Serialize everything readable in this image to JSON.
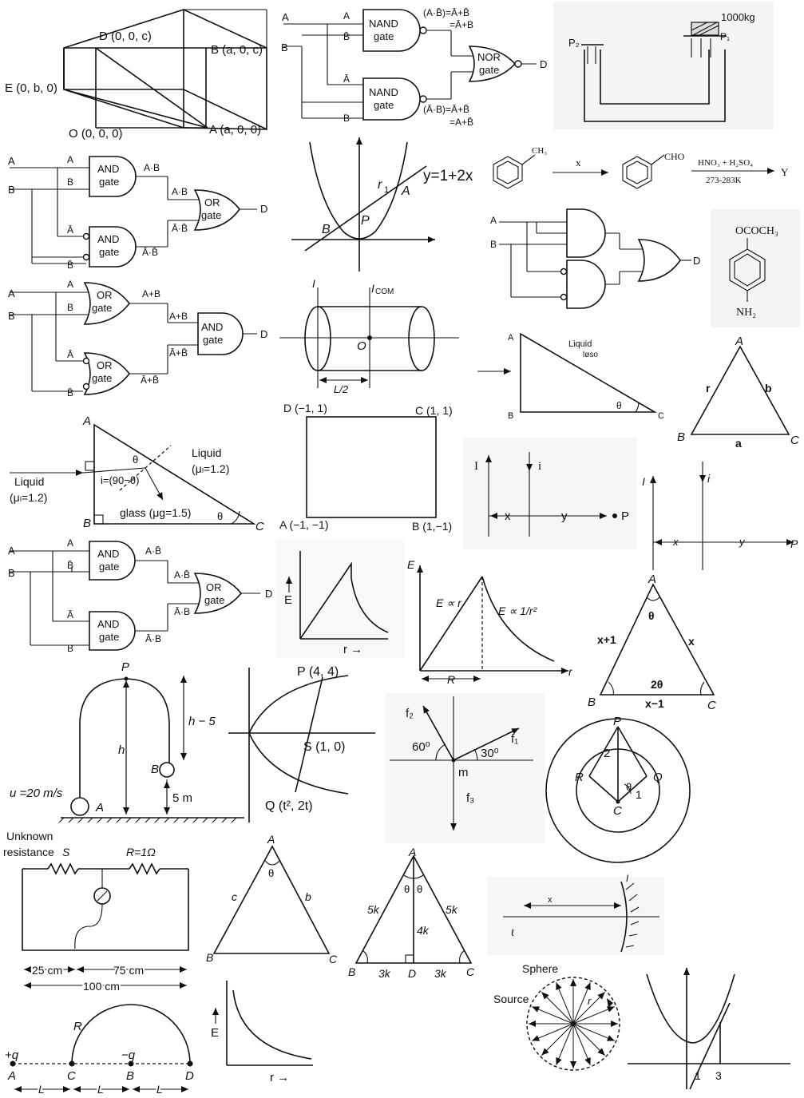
{
  "cube": {
    "D": "D (0, 0, c)",
    "B": "B (a, 0, c)",
    "E": "E (0, b, 0)",
    "O": "O (0, 0, 0)",
    "A": "A (a, 0, 0)"
  },
  "nand_nor": {
    "in_a": "A",
    "in_b": "B",
    "a1": "A",
    "b1": "B̄",
    "a2": "Ā",
    "b2": "B",
    "nand1": [
      "NAND",
      "gate"
    ],
    "nand2": [
      "NAND",
      "gate"
    ],
    "nor": [
      "NOR",
      "gate"
    ],
    "out1": [
      "(A·B̄)=Ā+B̄",
      "=Ā+B"
    ],
    "out2": [
      "(Ā·B)=Ā+B̄",
      "=A+B̄"
    ],
    "out": "D"
  },
  "hydraulic": {
    "mass": "1000kg",
    "p2": "P₂",
    "p1": "P₁"
  },
  "and_or_1": {
    "in_a": "A",
    "in_b": "B",
    "a1": "A",
    "b1": "B",
    "a2": "Ā",
    "b2": "B̄",
    "gate1": [
      "AND",
      "gate"
    ],
    "gate2": [
      "AND",
      "gate"
    ],
    "gate3": [
      "OR",
      "gate"
    ],
    "o1": "A·B",
    "o2": "Ā·B̄",
    "o1b": "A·B",
    "o2b": "Ā·B̄",
    "out": "D"
  },
  "parabola_line": {
    "eq": "y=1+2x",
    "r1": "r",
    "r1_sub": "1",
    "A": "A",
    "B": "B",
    "P": "P"
  },
  "toluene": {
    "ch3": "CH₃",
    "x": "x",
    "cho": "CHO",
    "reagent": "HNO₃ + H₂SO₄",
    "temp": "273-283K",
    "y": "Y"
  },
  "circuit_r": {
    "A": "A",
    "B": "B",
    "D": "D"
  },
  "acetoxy": {
    "top": "OCOCH₃",
    "bottom": "NH₂"
  },
  "or_and": {
    "in_a": "A",
    "in_b": "B",
    "a1": "A",
    "b1": "B",
    "a2": "Ā",
    "b2": "B̄",
    "gate1": [
      "OR",
      "gate"
    ],
    "gate2": [
      "OR",
      "gate"
    ],
    "gate3": [
      "AND",
      "gate"
    ],
    "o1": "A+B",
    "o2": "Ā+B̄",
    "o1b": "A+B",
    "o2b": "Ā+B̄",
    "out": "D"
  },
  "cylinder": {
    "i": "I",
    "icom": "I",
    "icom_sub": "COM",
    "o": "O",
    "l": "L/2"
  },
  "liquid_triangle": {
    "A": "A",
    "B": "B",
    "C": "C",
    "liquid": "Liquid",
    "sub": "løso",
    "theta": "θ"
  },
  "triangle_abc": {
    "A": "A",
    "B": "B",
    "C": "C",
    "a": "a",
    "b": "b",
    "r": "r"
  },
  "prism": {
    "A": "A",
    "B": "B",
    "C": "C",
    "liquid_l": "Liquid",
    "mu_l": "(μₗ=1.2)",
    "liquid_r": "Liquid",
    "mu_r": "(μₗ=1.2)",
    "angle": "i=(90−θ)",
    "glass": "glass (μg=1.5)",
    "theta1": "θ",
    "theta2": "θ"
  },
  "square": {
    "D": "D (−1, 1)",
    "C": "C (1, 1)",
    "A": "A (−1, −1)",
    "B": "B (1,−1)"
  },
  "wires1": {
    "I": "I",
    "i": "i",
    "x": "x",
    "y": "y",
    "P": "P"
  },
  "wires2": {
    "I": "I",
    "i": "i",
    "x": "x",
    "y": "y",
    "P": "P"
  },
  "and_or_2": {
    "in_a": "A",
    "in_b": "B",
    "a1": "A",
    "b1": "B̄",
    "a2": "Ā",
    "b2": "B",
    "gate1": [
      "AND",
      "gate"
    ],
    "gate2": [
      "AND",
      "gate"
    ],
    "gate3": [
      "OR",
      "gate"
    ],
    "o1": "A·B̄",
    "o2": "Ā·B",
    "o1b": "A·B̄",
    "o2b": "Ā·B",
    "out": "D"
  },
  "e_graph1": {
    "E": "E",
    "r": "r →"
  },
  "e_graph2": {
    "E": "E",
    "l1": "E ∝ r",
    "l2": "E ∝ 1/r²",
    "R": "R",
    "r": "r"
  },
  "tri_x": {
    "A": "A",
    "B": "B",
    "C": "C",
    "theta": "θ",
    "s1": "x+1",
    "s2": "x",
    "base": "x−1",
    "two_theta": "2θ"
  },
  "projectile": {
    "P": "P",
    "h": "h",
    "h5": "h − 5",
    "B": "B",
    "u": "u =20 m/s",
    "A": "A",
    "five": "5 m"
  },
  "parabola_chord": {
    "P": "P (4, 4)",
    "S": "S (1, 0)",
    "Q": "Q (t², 2t)"
  },
  "forces": {
    "f2": "f₂",
    "f1": "f₁",
    "f3": "f₃",
    "a60": "60⁰",
    "a30": "30⁰",
    "m": "m"
  },
  "circles": {
    "P": "P",
    "R": "R",
    "Q": "Q",
    "C": "C",
    "two": "2",
    "one": "1",
    "theta": "θ"
  },
  "meter_bridge": {
    "unknown": "Unknown",
    "resistance": "resistance",
    "S": "S",
    "R": "R=1Ω",
    "d25": "25 cm",
    "d75": "75 cm",
    "d100": "100 cm"
  },
  "tri_cb": {
    "A": "A",
    "B": "B",
    "C": "C",
    "c": "c",
    "b": "b",
    "theta": "θ"
  },
  "tri_5k": {
    "A": "A",
    "B": "B",
    "C": "C",
    "D": "D",
    "k5a": "5k",
    "k5b": "5k",
    "k4": "4k",
    "k3a": "3k",
    "k3b": "3k",
    "t1": "θ",
    "t2": "θ"
  },
  "mirror": {
    "x": "x",
    "I": "I",
    "l": "ℓ"
  },
  "sphere": {
    "sphere": "Sphere",
    "source": "Source",
    "r": "r"
  },
  "e_graph3": {
    "E": "E",
    "r": "r →"
  },
  "charges": {
    "q": "+q",
    "mq": "−q",
    "R": "R",
    "A": "A",
    "C": "C",
    "B": "B",
    "D": "D",
    "L1": "L",
    "L2": "L",
    "L3": "L"
  },
  "parab_graph": {
    "one": "1",
    "three": "3"
  }
}
